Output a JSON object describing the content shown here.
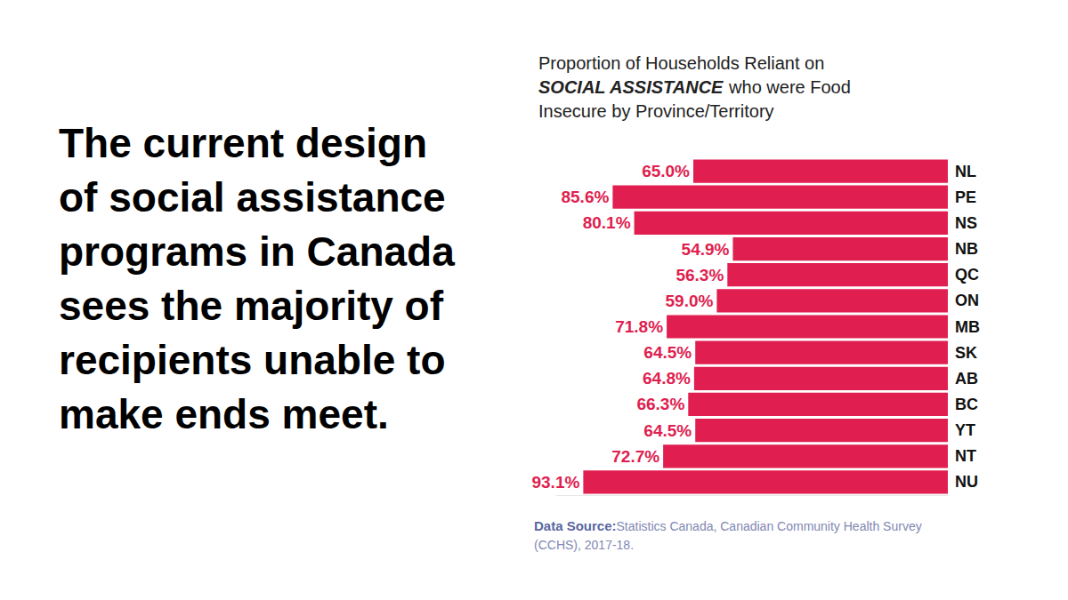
{
  "chart_data": {
    "type": "bar",
    "title": "Proportion of Households Reliant on\nSOCIAL ASSISTANCE who were Food\nInsecure by Province/Territory",
    "headline": "The current design\nof social assistance\nprograms in Canada\nsees the majority of\nrecipients unable to\nmake ends meet.",
    "source_label": "Data Source:",
    "source": "Statistics Canada, Canadian Community Health Survey\n(CCHS), 2017-18.",
    "categories": [
      "NL",
      "PE",
      "NS",
      "NB",
      "QC",
      "ON",
      "MB",
      "SK",
      "AB",
      "BC",
      "YT",
      "NT",
      "NU"
    ],
    "values": [
      65.0,
      85.6,
      80.1,
      54.9,
      56.3,
      59.0,
      71.8,
      64.5,
      64.8,
      66.3,
      64.5,
      72.7,
      93.1
    ],
    "value_labels": [
      "65.0%",
      "85.6%",
      "80.1%",
      "54.9%",
      "56.3%",
      "59.0%",
      "71.8%",
      "64.5%",
      "64.8%",
      "66.3%",
      "64.5%",
      "72.7%",
      "93.1%"
    ],
    "color": "#e01e4f",
    "xlim": [
      0,
      100
    ],
    "orientation": "horizontal",
    "data_labels": true,
    "tick_labels": "y",
    "grid": false
  }
}
